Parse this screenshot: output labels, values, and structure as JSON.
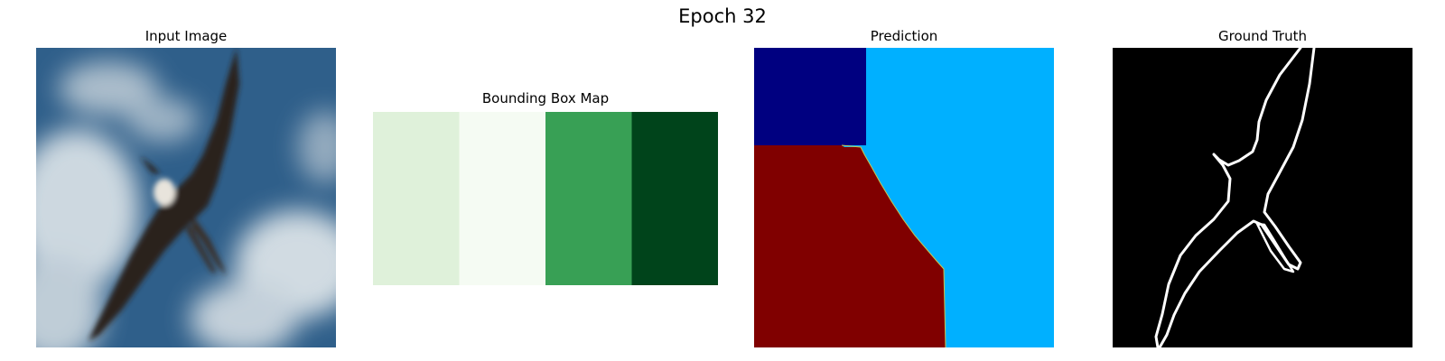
{
  "figure": {
    "suptitle": "Epoch 32",
    "panels": [
      {
        "title": "Input Image"
      },
      {
        "title": "Bounding Box Map"
      },
      {
        "title": "Prediction"
      },
      {
        "title": "Ground Truth"
      }
    ]
  },
  "bbox_map": {
    "colormap": "Greens",
    "column_colors": [
      "#dff1da",
      "#f5fbf3",
      "#38a055",
      "#00441b"
    ]
  },
  "prediction": {
    "colormap": "jet",
    "region_colors": [
      "#000080",
      "#00b0ff",
      "#800000"
    ]
  },
  "ground_truth": {
    "background_color": "#000000",
    "edge_color": "#ffffff"
  },
  "input_image": {
    "sky_color": "#2f5f8a",
    "cloud_color": "#dfe6ea",
    "bird_color": "#2a201b"
  }
}
